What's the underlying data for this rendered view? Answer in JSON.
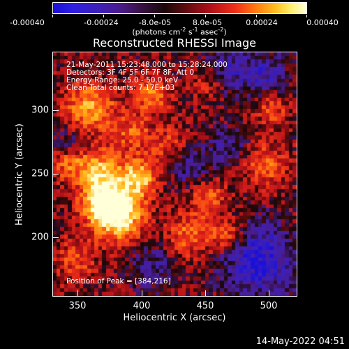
{
  "colorbar": {
    "tick_labels": [
      "-0.00040",
      "-0.00024",
      "-8.0e-05",
      "8.0e-05",
      "0.00024",
      "0.00040"
    ],
    "units_base": "(photons cm",
    "units_exp1": "-2",
    "units_mid1": " s",
    "units_exp2": "-1",
    "units_mid2": " asec",
    "units_exp3": "-2",
    "units_end": ")"
  },
  "chart_data": {
    "type": "heatmap",
    "title": "Reconstructed RHESSI Image",
    "xlabel": "Heliocentric X (arcsec)",
    "ylabel": "Heliocentric Y (arcsec)",
    "xlim": [
      332,
      524
    ],
    "ylim": [
      152,
      344
    ],
    "x_ticks": [
      350,
      400,
      450,
      500
    ],
    "y_ticks": [
      200,
      250,
      300
    ],
    "x_tick_labels": [
      "350",
      "400",
      "450",
      "500"
    ],
    "y_tick_labels": [
      "200",
      "250",
      "300"
    ],
    "color_range": [
      -0.0004,
      0.0004
    ],
    "colormap": [
      "#1a10d8",
      "#3d20b8",
      "#4a1c90",
      "#1a0808",
      "#b01018",
      "#f03018",
      "#ff7a10",
      "#ffc020",
      "#ffffd8"
    ],
    "peak": {
      "x": 384,
      "y": 216
    },
    "annotations": {
      "line1": "21-May-2011 15:23:48.000 to 15:28:24.000",
      "line2": "Detectors: 3F 4F 5F 6F 7F 8F, Att 0",
      "line3": "Energy Range: 25.0 - 50.0 keV",
      "line4": "Clean    Total counts: 7.17E+03",
      "peak_label": "Position of Peak = [384,216]"
    }
  },
  "timestamp": "14-May-2022 04:51"
}
